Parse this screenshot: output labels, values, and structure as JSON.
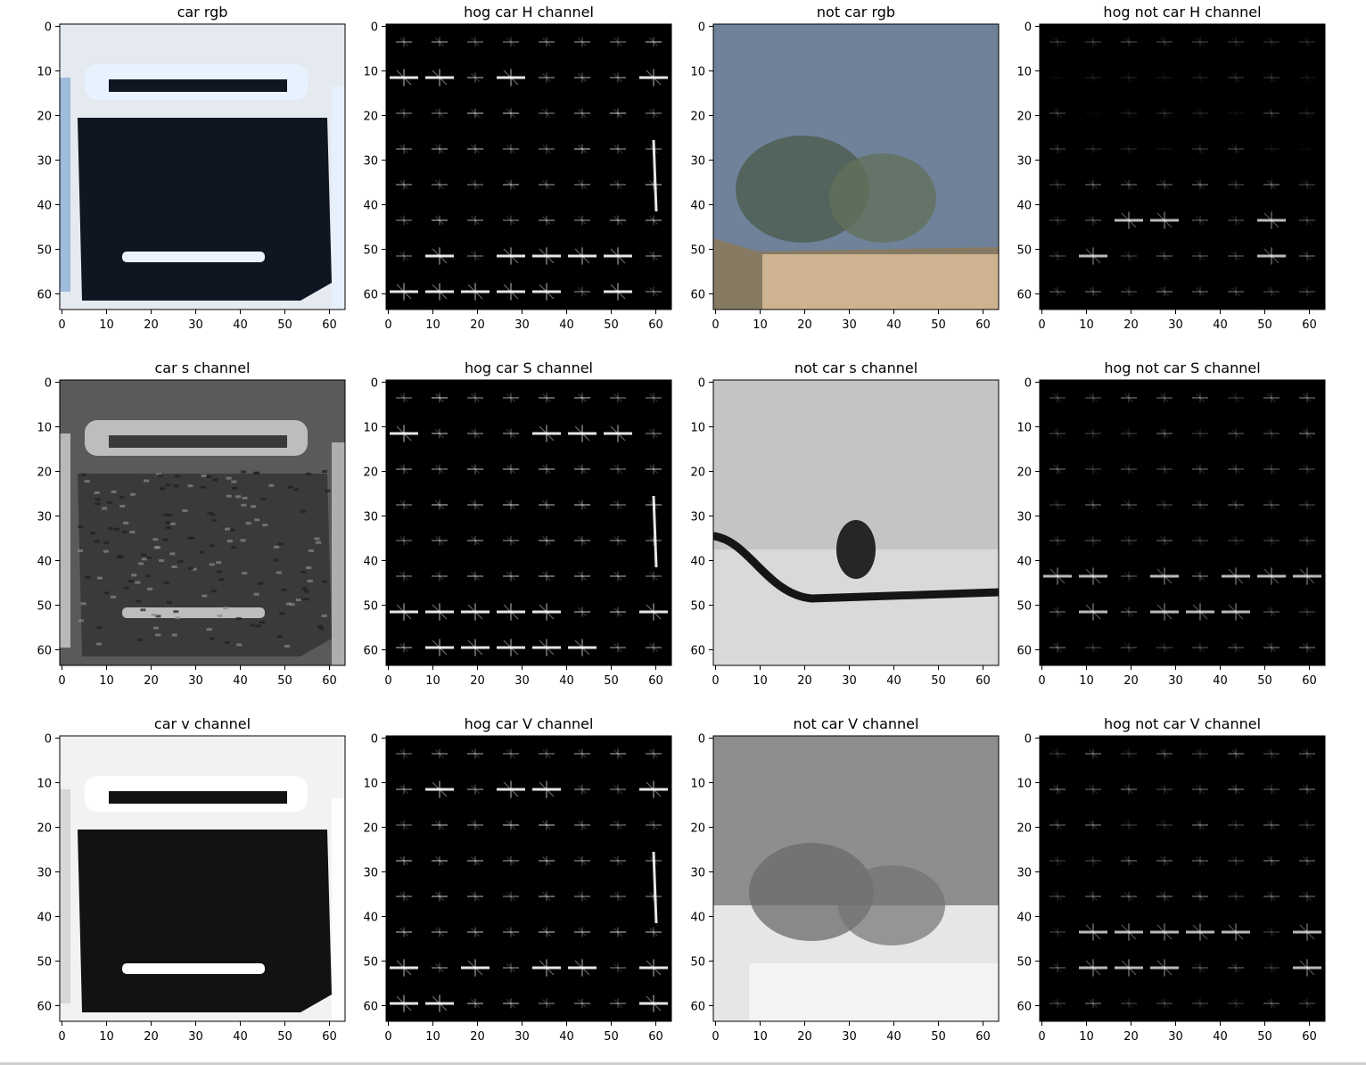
{
  "panels": [
    {
      "title": "car rgb",
      "kind": "car",
      "mode": "rgb"
    },
    {
      "title": "hog car H channel",
      "kind": "car",
      "mode": "hog-h"
    },
    {
      "title": "not car rgb",
      "kind": "notcar",
      "mode": "rgb"
    },
    {
      "title": "hog not car H channel",
      "kind": "notcar",
      "mode": "hog-h"
    },
    {
      "title": "car s channel",
      "kind": "car",
      "mode": "s"
    },
    {
      "title": "hog car S channel",
      "kind": "car",
      "mode": "hog-s"
    },
    {
      "title": "not car s channel",
      "kind": "notcar",
      "mode": "s"
    },
    {
      "title": "hog not car S channel",
      "kind": "notcar",
      "mode": "hog-s"
    },
    {
      "title": "car v channel",
      "kind": "car",
      "mode": "v"
    },
    {
      "title": "hog car V channel",
      "kind": "car",
      "mode": "hog-v"
    },
    {
      "title": "not car V channel",
      "kind": "notcar",
      "mode": "v"
    },
    {
      "title": "hog not car V channel",
      "kind": "notcar",
      "mode": "hog-v"
    }
  ],
  "axes": {
    "xticks": [
      "0",
      "10",
      "20",
      "30",
      "40",
      "50",
      "60"
    ],
    "yticks": [
      "0",
      "10",
      "20",
      "30",
      "40",
      "50",
      "60"
    ],
    "range": [
      0,
      64
    ]
  },
  "colors": {
    "axis": "#000000",
    "hog_background": "#000000",
    "sky": "#6f829a",
    "trees": "#4d5f52",
    "ground": "#cdb38f",
    "car_body": "#101522",
    "car_light": "#e8f2ff"
  }
}
